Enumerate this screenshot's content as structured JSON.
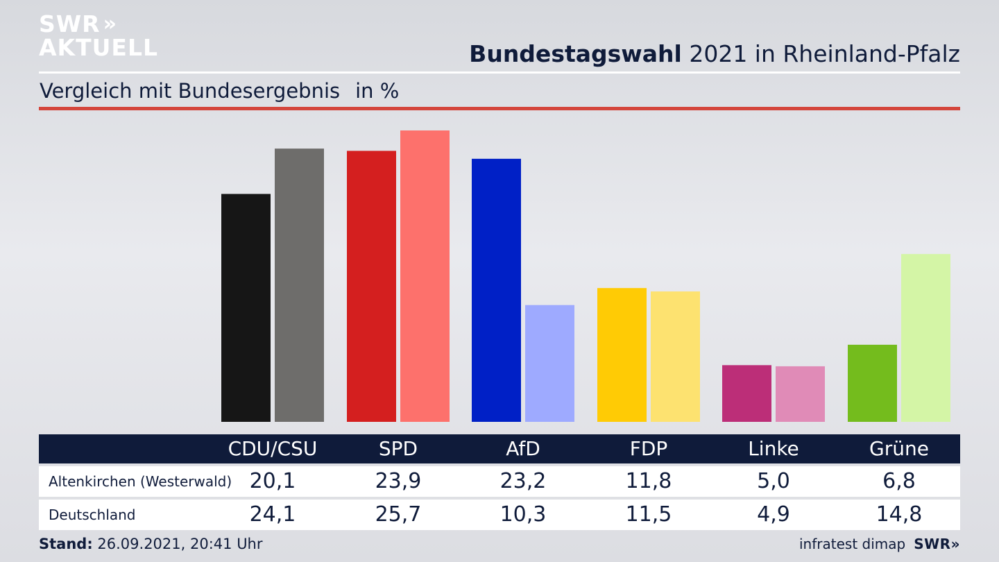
{
  "logo": {
    "line1": "SWR",
    "line2": "AKTUELL",
    "chevrons": "»"
  },
  "header": {
    "title_bold": "Bundestagswahl",
    "title_rest": "2021 in Rheinland-Pfalz"
  },
  "subheader": {
    "text": "Vergleich mit Bundesergebnis",
    "unit": "in %"
  },
  "colors": {
    "CDU/CSU": [
      "#161616",
      "#6e6d6b"
    ],
    "SPD": [
      "#d41f1f",
      "#fd716c"
    ],
    "AfD": [
      "#0020c6",
      "#9eaaff"
    ],
    "FDP": [
      "#ffcb05",
      "#fde270"
    ],
    "Linke": [
      "#bc2e78",
      "#e08bb7"
    ],
    "Grüne": [
      "#74bc1d",
      "#d4f5a6"
    ],
    "accent_red": "#d4463c",
    "navy": "#0f1b3a"
  },
  "chart_data": {
    "type": "bar",
    "title": "Bundestagswahl 2021 in Rheinland-Pfalz",
    "subtitle": "Vergleich mit Bundesergebnis",
    "ylabel": "in %",
    "xlabel": "",
    "ylim": [
      0,
      27
    ],
    "grid": false,
    "categories": [
      "CDU/CSU",
      "SPD",
      "AfD",
      "FDP",
      "Linke",
      "Grüne"
    ],
    "series": [
      {
        "name": "Altenkirchen (Westerwald)",
        "values": [
          20.1,
          23.9,
          23.2,
          11.8,
          5.0,
          6.8
        ],
        "labels": [
          "20,1",
          "23,9",
          "23,2",
          "11,8",
          "5,0",
          "6,8"
        ]
      },
      {
        "name": "Deutschland",
        "values": [
          24.1,
          25.7,
          10.3,
          11.5,
          4.9,
          14.8
        ],
        "labels": [
          "24,1",
          "25,7",
          "10,3",
          "11,5",
          "4,9",
          "14,8"
        ]
      }
    ]
  },
  "table": {
    "headers": [
      "CDU/CSU",
      "SPD",
      "AfD",
      "FDP",
      "Linke",
      "Grüne"
    ],
    "rows": [
      {
        "label": "Altenkirchen (Westerwald)",
        "values": [
          "20,1",
          "23,9",
          "23,2",
          "11,8",
          "5,0",
          "6,8"
        ]
      },
      {
        "label": "Deutschland",
        "values": [
          "24,1",
          "25,7",
          "10,3",
          "11,5",
          "4,9",
          "14,8"
        ]
      }
    ]
  },
  "footer": {
    "stand_label": "Stand:",
    "stand_value": "26.09.2021, 20:41 Uhr",
    "source": "infratest dimap",
    "brand": "SWR»"
  }
}
